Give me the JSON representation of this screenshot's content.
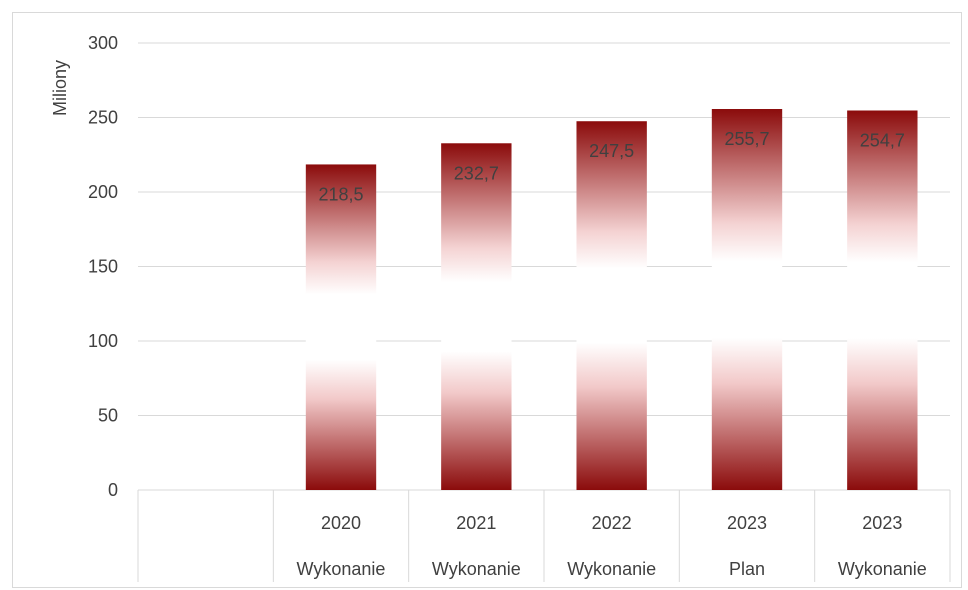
{
  "chart_data": {
    "type": "bar",
    "ylabel": "Miliony",
    "ylim": [
      0,
      300
    ],
    "yticks": [
      0,
      50,
      100,
      150,
      200,
      250,
      300
    ],
    "grid": true,
    "categories": [
      {
        "year": "",
        "kind": ""
      },
      {
        "year": "2020",
        "kind": "Wykonanie"
      },
      {
        "year": "2021",
        "kind": "Wykonanie"
      },
      {
        "year": "2022",
        "kind": "Wykonanie"
      },
      {
        "year": "2023",
        "kind": "Plan"
      },
      {
        "year": "2023",
        "kind": "Wykonanie"
      }
    ],
    "series": [
      {
        "values": [
          null,
          218.5,
          232.7,
          247.5,
          255.7,
          254.7
        ],
        "labels": [
          "",
          "218,5",
          "232,7",
          "247,5",
          "255,7",
          "254,7"
        ]
      }
    ],
    "bar_color": "#8b0000"
  }
}
